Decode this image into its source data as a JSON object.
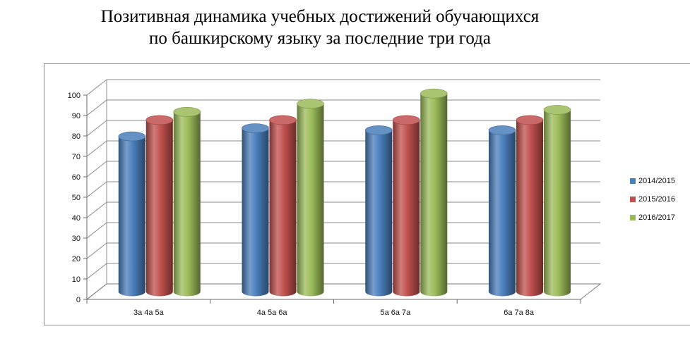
{
  "title_lines": [
    "Позитивная динамика учебных достижений обучающихся",
    "по башкирскому языку  за последние три года"
  ],
  "chart_data": {
    "type": "bar",
    "title": "Позитивная динамика учебных достижений обучающихся по башкирскому языку  за последние три года",
    "categories": [
      "3а 4а 5а",
      "4а 5а 6а",
      "5а 6а 7а",
      "6а 7а 8а"
    ],
    "series": [
      {
        "name": "2014/2015",
        "color": "#4a7ebb",
        "values": [
          76,
          80,
          79,
          79
        ]
      },
      {
        "name": "2015/2016",
        "color": "#c0504d",
        "values": [
          84,
          84,
          84,
          84
        ]
      },
      {
        "name": "2016/2017",
        "color": "#9bbb59",
        "values": [
          88,
          92,
          97,
          89
        ]
      }
    ],
    "ylim": [
      0,
      100
    ],
    "yticks": [
      0,
      10,
      20,
      30,
      40,
      50,
      60,
      70,
      80,
      90,
      100
    ],
    "grid": true,
    "legend_position": "right",
    "bar_style": "3d-cylinder"
  }
}
